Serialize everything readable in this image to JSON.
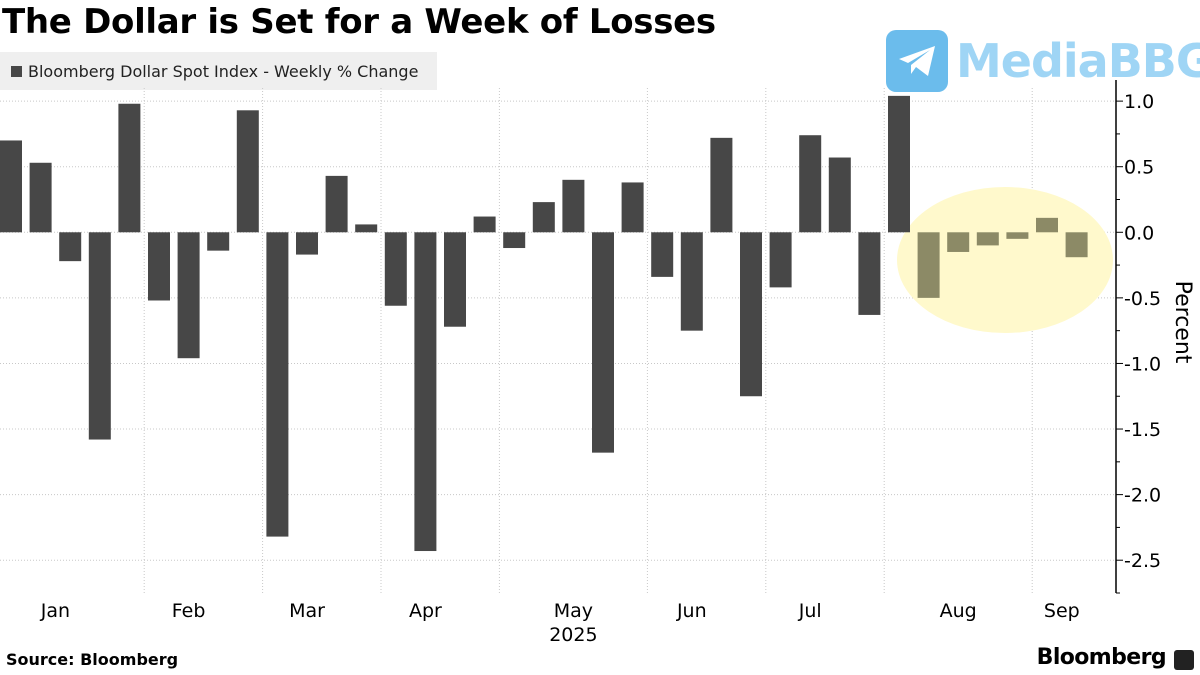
{
  "title": "The Dollar is Set for a Week of Losses",
  "source": "Source: Bloomberg",
  "brand": "Bloomberg",
  "watermark": "MediaBBG",
  "colors": {
    "bar": "#474747",
    "highlight_bar": "#8c8a66",
    "highlight_fill": "#fff9cc",
    "grid": "#c8c8c8"
  },
  "chart_data": {
    "type": "bar",
    "title": "The Dollar is Set for a Week of Losses",
    "legend": [
      "Bloomberg Dollar Spot Index - Weekly % Change"
    ],
    "ylabel": "Percent",
    "xlabel": "2025",
    "ylim": [
      -2.75,
      1.1
    ],
    "yticks": [
      1.0,
      0.5,
      0.0,
      -0.5,
      -1.0,
      -1.5,
      -2.0,
      -2.5
    ],
    "ytick_labels": [
      "1.0",
      "0.5",
      "0.0",
      "-0.5",
      "-1.0",
      "-1.5",
      "-2.0",
      "-2.5"
    ],
    "month_labels": [
      "Jan",
      "Feb",
      "Mar",
      "Apr",
      "May",
      "Jun",
      "Jul",
      "Aug",
      "Sep"
    ],
    "year_label": "2025",
    "highlight_from_index": 31,
    "values": [
      0.7,
      0.53,
      -0.22,
      -1.58,
      0.98,
      -0.52,
      -0.96,
      -0.14,
      0.93,
      -2.32,
      -0.17,
      0.43,
      0.06,
      -0.56,
      -2.43,
      -0.72,
      0.12,
      -0.12,
      0.23,
      0.4,
      -1.68,
      0.38,
      -0.34,
      -0.75,
      0.72,
      -1.25,
      -0.42,
      0.74,
      0.57,
      -0.63,
      1.04,
      -0.5,
      -0.15,
      -0.1,
      -0.05,
      0.11,
      -0.19
    ]
  }
}
